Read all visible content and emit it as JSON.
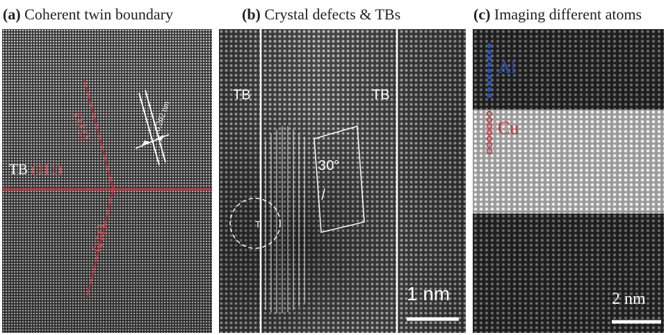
{
  "panels": {
    "a": {
      "letter": "(a)",
      "title": "Coherent twin boundary",
      "tb_label": "TB",
      "plane_main": "(111)",
      "plane_upper": "(111)",
      "plane_lower": "(111)",
      "spacing": "0.202 nm"
    },
    "b": {
      "letter": "(b)",
      "title": "Crystal defects & TBs",
      "tb_left": "TB",
      "tb_right": "TB",
      "angle": "30°",
      "defect_symbol": "T",
      "scale": "1 nm"
    },
    "c": {
      "letter": "(c)",
      "title": "Imaging different atoms",
      "atom_top": "Al",
      "atom_bottom": "Cu",
      "scale": "2 nm"
    }
  },
  "colors": {
    "boundary_red": "#c8303c",
    "al_blue": "#2a4fb0",
    "cu_red": "#c8303c",
    "annotation_white": "#ffffff"
  }
}
